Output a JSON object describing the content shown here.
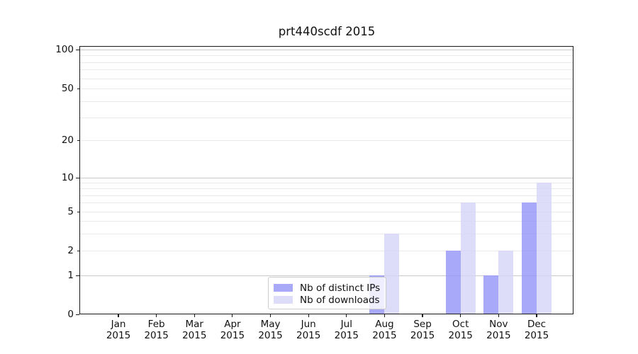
{
  "chart_data": {
    "type": "bar",
    "title": "prt440scdf 2015",
    "categories": [
      "Jan",
      "Feb",
      "Mar",
      "Apr",
      "May",
      "Jun",
      "Jul",
      "Aug",
      "Sep",
      "Oct",
      "Nov",
      "Dec"
    ],
    "year_label": "2015",
    "series": [
      {
        "name": "Nb of distinct IPs",
        "color": "rgba(150,150,249,0.82)",
        "values": [
          0,
          0,
          0,
          0,
          0,
          0,
          0,
          1,
          0,
          2,
          1,
          6
        ]
      },
      {
        "name": "Nb of downloads",
        "color": "rgba(213,213,248,0.82)",
        "values": [
          0,
          0,
          0,
          0,
          0,
          0,
          0,
          3,
          0,
          6,
          2,
          9
        ]
      }
    ],
    "xlabel": "",
    "ylabel": "",
    "y_axis": {
      "scale": "log (linear segment between 0 and 1)",
      "tick_values": [
        0,
        1,
        2,
        5,
        10,
        20,
        50,
        100
      ],
      "minor_tick_values": [
        3,
        4,
        6,
        7,
        8,
        9,
        30,
        40,
        60,
        70,
        80,
        90
      ],
      "ylim": [
        0,
        110
      ]
    },
    "grid": true,
    "legend_position": "inside lower-center"
  },
  "colors": {
    "bar_distinct_ips": "rgba(150,150,249,0.82)",
    "bar_downloads": "rgba(213,213,248,0.82)",
    "grid_major": "#c9c9c9",
    "grid_minor": "#eaeaea",
    "spine": "#1a1a1a",
    "text": "#111111",
    "legend_border": "#cccccc"
  }
}
